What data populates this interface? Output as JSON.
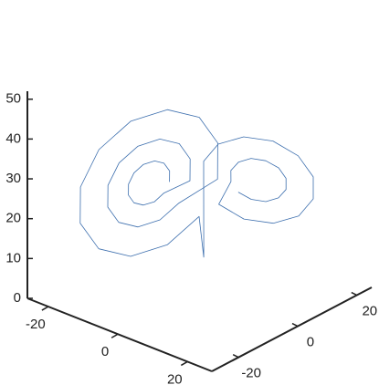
{
  "chart_data": {
    "type": "line3d",
    "color": "#3d6fae",
    "xlim": [
      -26,
      27
    ],
    "ylim": [
      -29,
      25
    ],
    "zlim": [
      0,
      52
    ],
    "xticks": [
      -20,
      0,
      20
    ],
    "yticks": [
      -20,
      0,
      20
    ],
    "zticks": [
      0,
      10,
      20,
      30,
      40,
      50
    ],
    "x": [
      -5.5,
      -5.9,
      -7,
      -8.5,
      -10,
      -11.1,
      -11.5,
      -11.1,
      -10,
      -8.5,
      -7,
      -5.9,
      -2.5,
      -3.3,
      -5.5,
      -8.5,
      -11.5,
      -13.7,
      -14.5,
      -13.7,
      -11.5,
      -8.5,
      -5.5,
      -3.3,
      1.5,
      0.2,
      -3.5,
      -8.5,
      -13.5,
      -17.2,
      -18.5,
      -17.2,
      -13.5,
      -8.5,
      -3.5,
      0.2,
      0,
      0.5,
      1.6,
      4.5,
      8.5,
      12.5,
      15.4,
      16.5,
      15.4,
      12.5,
      8.5,
      4.5,
      1.6,
      4.5,
      5,
      6.5,
      8.5,
      10.5,
      12,
      12.5,
      12,
      10.5,
      8.5,
      6.5,
      5
    ],
    "y": [
      -5.1,
      -4.6,
      -5.2,
      -6.6,
      -8.6,
      -10.5,
      -11.9,
      -12.4,
      -11.8,
      -10.4,
      -8.4,
      -6.5,
      -1.7,
      -0.7,
      -1.8,
      -4.8,
      -8.7,
      -12.5,
      -15.3,
      -16.3,
      -15.2,
      -12.2,
      -8.3,
      -4.5,
      2.9,
      4.5,
      2.6,
      -2.3,
      -8.8,
      -15.2,
      -19.9,
      -21.5,
      -19.6,
      -14.7,
      -8.2,
      -1.8,
      0,
      -0.6,
      -1.9,
      -0.4,
      3.5,
      8.7,
      13.8,
      17.6,
      18.9,
      17.4,
      13.5,
      8.3,
      3.2,
      3.9,
      3.3,
      4.1,
      6,
      8.6,
      11.2,
      13.1,
      13.7,
      12.9,
      11,
      8.4,
      5.8
    ],
    "z": [
      27,
      29.4,
      31.2,
      31.8,
      31.2,
      29.4,
      27,
      24.6,
      22.8,
      22.2,
      22.8,
      24.6,
      27,
      31.8,
      35.3,
      36.6,
      35.3,
      31.8,
      27,
      22.2,
      18.7,
      17.4,
      18.7,
      22.2,
      27,
      35,
      40.9,
      43,
      40.9,
      35,
      27,
      19,
      13.1,
      11,
      13.1,
      19,
      8,
      27,
      33.4,
      38.1,
      39.8,
      38.1,
      33.4,
      27,
      20.6,
      15.9,
      14.2,
      15.9,
      20.6,
      27,
      30.2,
      32.5,
      33.4,
      32.5,
      30.2,
      27,
      23.8,
      21.5,
      20.6,
      21.5,
      23.8
    ]
  }
}
